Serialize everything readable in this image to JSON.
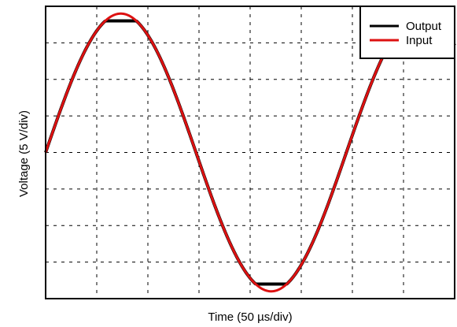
{
  "chart_data": {
    "type": "line",
    "title": "",
    "xlabel": "Time (50 µs/div)",
    "ylabel": "Voltage (5 V/div)",
    "x_divisions": 8,
    "y_divisions": 8,
    "xlim": [
      0,
      8
    ],
    "ylim": [
      -4,
      4
    ],
    "grid": true,
    "grid_style": "dashed",
    "tick_labels": false,
    "legend_position": "top-right",
    "series": [
      {
        "name": "Output",
        "color": "#000000",
        "shape": "clipped sine",
        "amplitude_div": 3.8,
        "clip_level_div": 3.6,
        "offset_div": 0,
        "frequency_cycles": 1.36,
        "phase_at_start": "zero crossing, rising",
        "start_div": 0,
        "end_div": 8
      },
      {
        "name": "Input",
        "color": "#dd1111",
        "shape": "sine",
        "amplitude_div": 3.8,
        "offset_div": 0,
        "frequency_cycles": 1.36,
        "phase_at_start": "zero crossing, rising",
        "start_div": 0,
        "end_div": 8
      }
    ]
  }
}
